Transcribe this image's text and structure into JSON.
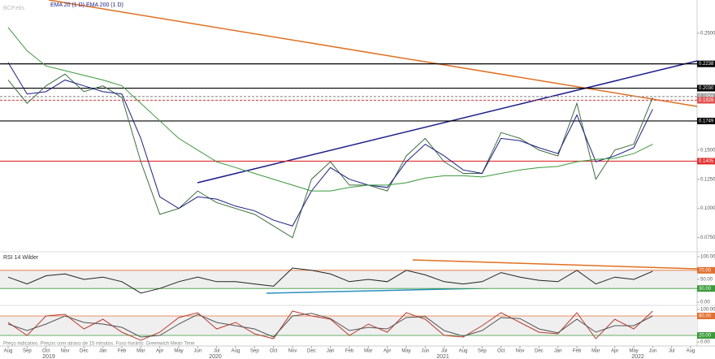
{
  "x_axis": {
    "categories": [
      "Aug",
      "Sep",
      "Oct",
      "Nov",
      "Dec",
      "Jan",
      "Feb",
      "Mar",
      "Apr",
      "May",
      "Jun",
      "Jul",
      "Aug",
      "Sep",
      "Oct",
      "Nov",
      "Dec",
      "Jan",
      "Feb",
      "Mar",
      "Apr",
      "May",
      "Jun",
      "Jul",
      "Aug",
      "Sep",
      "Oct",
      "Nov",
      "Dec",
      "Jan",
      "Feb",
      "Mar",
      "Apr",
      "May",
      "Jun",
      "Jul",
      "Aug"
    ],
    "years": [
      "2019",
      "2020",
      "2021",
      "2022"
    ]
  },
  "footer": "Preço indicativo. Preços com atraso de 15 minutos. Fuso horário: Greenwich Mean Time",
  "chart_data": [
    {
      "type": "line",
      "title": "BCP.elis",
      "legend": "EMA 20 (1 D) EMA 200 (1 D)",
      "ylim": [
        0.065,
        0.275
      ],
      "yticks": [
        {
          "value": 0.25,
          "label": "0.2500"
        },
        {
          "value": 0.15,
          "label": "0.1500"
        },
        {
          "value": 0.125,
          "label": "0.1250"
        },
        {
          "value": 0.1,
          "label": "0.1000"
        },
        {
          "value": 0.075,
          "label": "0.0750"
        }
      ],
      "levels": [
        {
          "value": 0.2238,
          "label": "0.2238",
          "color": "#000000"
        },
        {
          "value": 0.203,
          "label": "0.2030",
          "color": "#000000"
        },
        {
          "value": 0.1958,
          "label": "0.1958",
          "color": "#999999"
        },
        {
          "value": 0.1926,
          "label": "0.1926",
          "color": "#e05050"
        },
        {
          "value": 0.1749,
          "label": "0.1749",
          "color": "#000000"
        },
        {
          "value": 0.1405,
          "label": "0.1405",
          "color": "#e03030"
        }
      ],
      "series": [
        {
          "color": "#3d6e3d",
          "values": [
            0.21,
            0.19,
            0.205,
            0.215,
            0.2,
            0.205,
            0.195,
            0.14,
            0.095,
            0.1,
            0.115,
            0.105,
            0.1,
            0.095,
            0.085,
            0.075,
            0.125,
            0.14,
            0.12,
            0.12,
            0.115,
            0.145,
            0.16,
            0.14,
            0.13,
            0.13,
            0.165,
            0.16,
            0.15,
            0.145,
            0.19,
            0.125,
            0.15,
            0.155,
            0.195,
            null,
            null
          ]
        },
        {
          "name": "EMA 20 (1 D)",
          "color": "#1c1c8c",
          "values": [
            0.225,
            0.198,
            0.2,
            0.21,
            0.205,
            0.2,
            0.198,
            0.16,
            0.11,
            0.1,
            0.11,
            0.108,
            0.102,
            0.098,
            0.09,
            0.085,
            0.115,
            0.135,
            0.125,
            0.12,
            0.118,
            0.14,
            0.155,
            0.145,
            0.133,
            0.13,
            0.16,
            0.158,
            0.152,
            0.147,
            0.18,
            0.14,
            0.145,
            0.152,
            0.185,
            null,
            null
          ]
        },
        {
          "name": "EMA 200 (1 D)",
          "color": "#3a9a3a",
          "values": [
            0.255,
            0.235,
            0.222,
            0.218,
            0.214,
            0.21,
            0.205,
            0.19,
            0.175,
            0.16,
            0.15,
            0.14,
            0.135,
            0.13,
            0.125,
            0.12,
            0.115,
            0.115,
            0.118,
            0.12,
            0.12,
            0.122,
            0.126,
            0.128,
            0.128,
            0.127,
            0.13,
            0.133,
            0.135,
            0.136,
            0.14,
            0.142,
            0.143,
            0.147,
            0.155,
            null,
            null
          ]
        }
      ]
    },
    {
      "type": "line",
      "title": "RSI 14 Wilder",
      "ylim": [
        0,
        100
      ],
      "yticks": [
        {
          "value": 100,
          "label": "100.00"
        },
        {
          "value": 50,
          "label": "50.00"
        },
        {
          "value": 0,
          "label": "0.00"
        }
      ],
      "band": [
        30,
        70
      ],
      "levels": [
        {
          "value": 70,
          "label": "70.00",
          "color": "#e07030"
        },
        {
          "value": 30,
          "label": "30.00",
          "color": "#3a9a3a"
        }
      ],
      "series": [
        {
          "color": "#222222",
          "values": [
            55,
            40,
            58,
            62,
            50,
            55,
            45,
            20,
            30,
            45,
            55,
            45,
            45,
            40,
            35,
            75,
            70,
            62,
            45,
            50,
            45,
            70,
            60,
            45,
            40,
            45,
            65,
            55,
            48,
            45,
            70,
            40,
            55,
            50,
            68,
            null,
            null
          ]
        }
      ]
    },
    {
      "type": "line",
      "ylim": [
        0,
        100
      ],
      "yticks": [
        {
          "value": 100,
          "label": "100.00"
        },
        {
          "value": 0,
          "label": "0.00"
        }
      ],
      "band": [
        20,
        80
      ],
      "levels": [
        {
          "value": 80,
          "label": "80.00",
          "color": "#e07030"
        },
        {
          "value": 20,
          "label": "20.00",
          "color": "#3a9a3a"
        }
      ],
      "series": [
        {
          "color": "#c0392b",
          "values": [
            60,
            20,
            80,
            85,
            40,
            70,
            30,
            5,
            30,
            75,
            90,
            40,
            60,
            25,
            10,
            95,
            80,
            70,
            20,
            55,
            30,
            90,
            70,
            20,
            15,
            50,
            90,
            60,
            30,
            25,
            90,
            10,
            70,
            40,
            95,
            null,
            null
          ]
        },
        {
          "color": "#555555",
          "values": [
            55,
            35,
            55,
            80,
            60,
            55,
            45,
            15,
            20,
            55,
            85,
            60,
            50,
            40,
            15,
            80,
            88,
            72,
            35,
            45,
            40,
            75,
            78,
            35,
            18,
            35,
            75,
            72,
            40,
            28,
            70,
            30,
            50,
            50,
            80,
            null,
            null
          ]
        }
      ]
    }
  ]
}
